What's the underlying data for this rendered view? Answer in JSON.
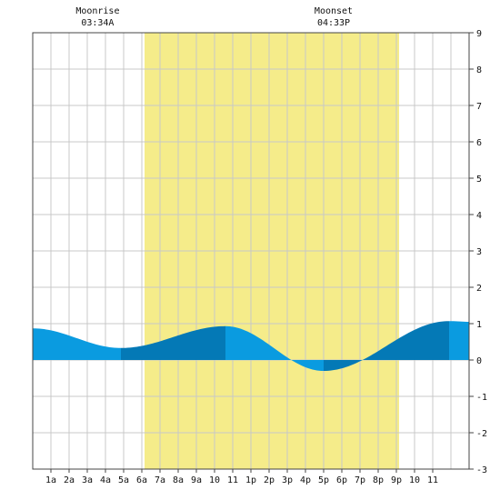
{
  "chart_data": {
    "type": "area",
    "title": "",
    "xlabel": "",
    "ylabel": "",
    "x_unit": "hour of day",
    "xlim": [
      0,
      24
    ],
    "ylim": [
      -3,
      9
    ],
    "yticks": [
      -3,
      -2,
      -1,
      0,
      1,
      2,
      3,
      4,
      5,
      6,
      7,
      8,
      9
    ],
    "x_tick_labels": [
      {
        "hour": 1,
        "label": "1a"
      },
      {
        "hour": 2,
        "label": "2a"
      },
      {
        "hour": 3,
        "label": "3a"
      },
      {
        "hour": 4,
        "label": "4a"
      },
      {
        "hour": 5,
        "label": "5a"
      },
      {
        "hour": 6,
        "label": "6a"
      },
      {
        "hour": 7,
        "label": "7a"
      },
      {
        "hour": 8,
        "label": "8a"
      },
      {
        "hour": 9,
        "label": "9a"
      },
      {
        "hour": 10,
        "label": "10"
      },
      {
        "hour": 11,
        "label": "11"
      },
      {
        "hour": 12,
        "label": "1p"
      },
      {
        "hour": 13,
        "label": "2p"
      },
      {
        "hour": 14,
        "label": "3p"
      },
      {
        "hour": 15,
        "label": "4p"
      },
      {
        "hour": 16,
        "label": "5p"
      },
      {
        "hour": 17,
        "label": "6p"
      },
      {
        "hour": 18,
        "label": "7p"
      },
      {
        "hour": 19,
        "label": "8p"
      },
      {
        "hour": 20,
        "label": "9p"
      },
      {
        "hour": 21,
        "label": "10"
      },
      {
        "hour": 22,
        "label": "11"
      }
    ],
    "grid": true,
    "daylight": {
      "start_hour": 6.15,
      "end_hour": 20.15
    },
    "extremes": [
      {
        "hour": 4.85,
        "value": 0.33,
        "kind": "low"
      },
      {
        "hour": 10.6,
        "value": 0.93,
        "kind": "high"
      },
      {
        "hour": 16.0,
        "value": -0.3,
        "kind": "low"
      },
      {
        "hour": 22.9,
        "value": 1.07,
        "kind": "high"
      }
    ],
    "start_level": 0.87,
    "end_level": 1.05,
    "bands": [
      {
        "start_hour": 0,
        "end_hour": 4.85,
        "shade": "light"
      },
      {
        "start_hour": 4.85,
        "end_hour": 10.6,
        "shade": "dark"
      },
      {
        "start_hour": 10.6,
        "end_hour": 16.0,
        "shade": "light"
      },
      {
        "start_hour": 16.0,
        "end_hour": 22.9,
        "shade": "dark"
      },
      {
        "start_hour": 22.9,
        "end_hour": 24,
        "shade": "light"
      }
    ],
    "colors": {
      "daylight": "#f5ec8a",
      "tide_light": "#0a9be0",
      "tide_dark": "#0479b6",
      "grid": "#c8c8c8",
      "frame": "#444444",
      "text": "#111111"
    }
  },
  "moon": {
    "rise_label": "Moonrise",
    "rise_time": "03:34A",
    "rise_hour": 3.57,
    "set_label": "Moonset",
    "set_time": "04:33P",
    "set_hour": 16.55
  }
}
